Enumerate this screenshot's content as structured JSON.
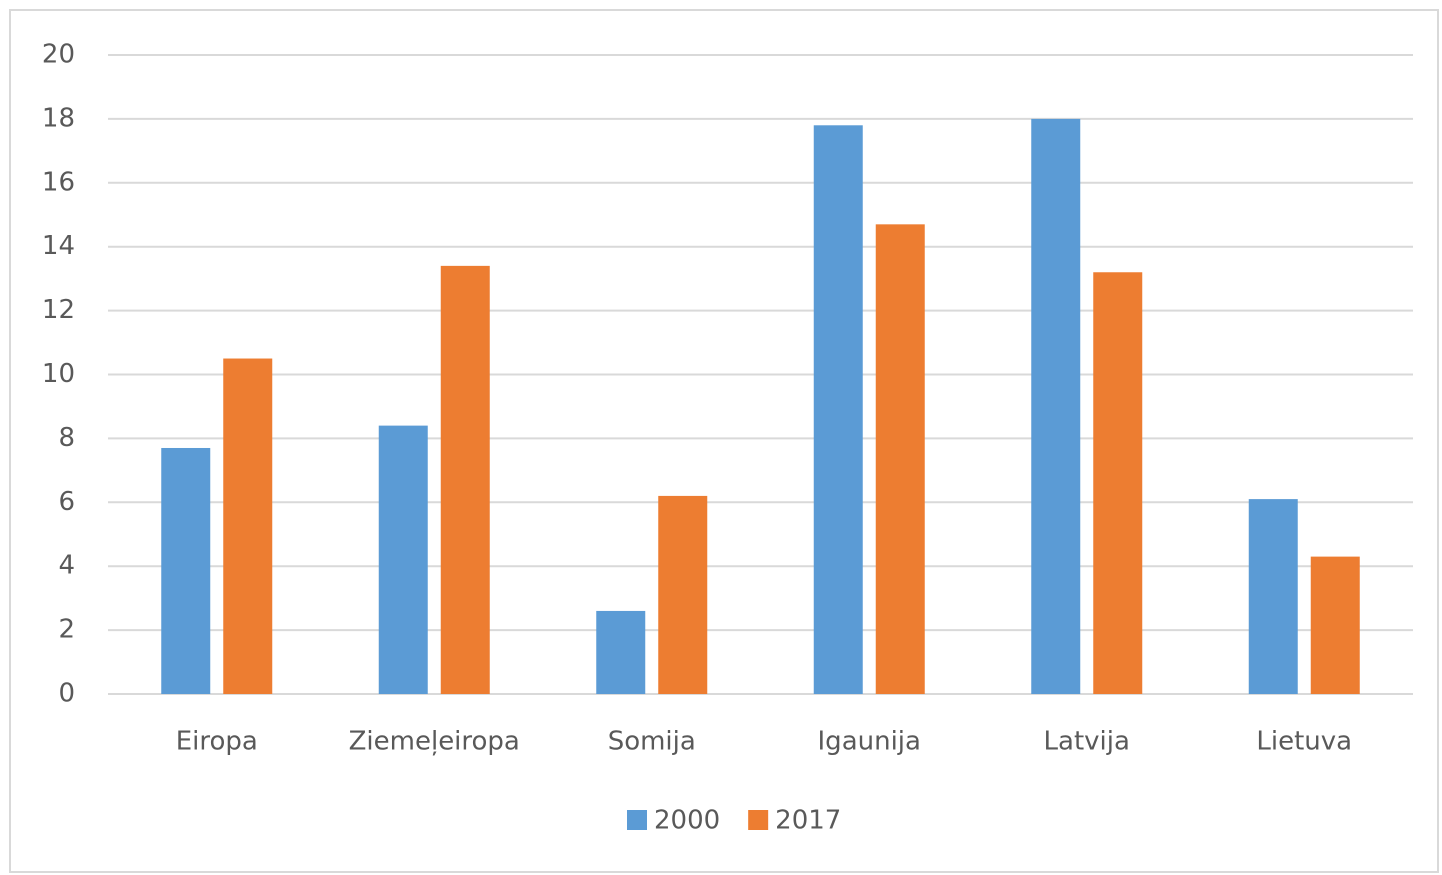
{
  "chart_data": {
    "type": "bar",
    "categories": [
      "Eiropa",
      "Ziemeļeiropa",
      "Somija",
      "Igaunija",
      "Latvija",
      "Lietuva"
    ],
    "series": [
      {
        "name": "2000",
        "color": "#5b9bd5",
        "values": [
          7.7,
          8.4,
          2.6,
          17.8,
          18.0,
          6.1
        ]
      },
      {
        "name": "2017",
        "color": "#ed7d31",
        "values": [
          10.5,
          13.4,
          6.2,
          14.7,
          13.2,
          4.3
        ]
      }
    ],
    "ylim": [
      0,
      20
    ],
    "yticks": [
      0,
      2,
      4,
      6,
      8,
      10,
      12,
      14,
      16,
      18,
      20
    ],
    "grid": true,
    "legend": "bottom"
  }
}
